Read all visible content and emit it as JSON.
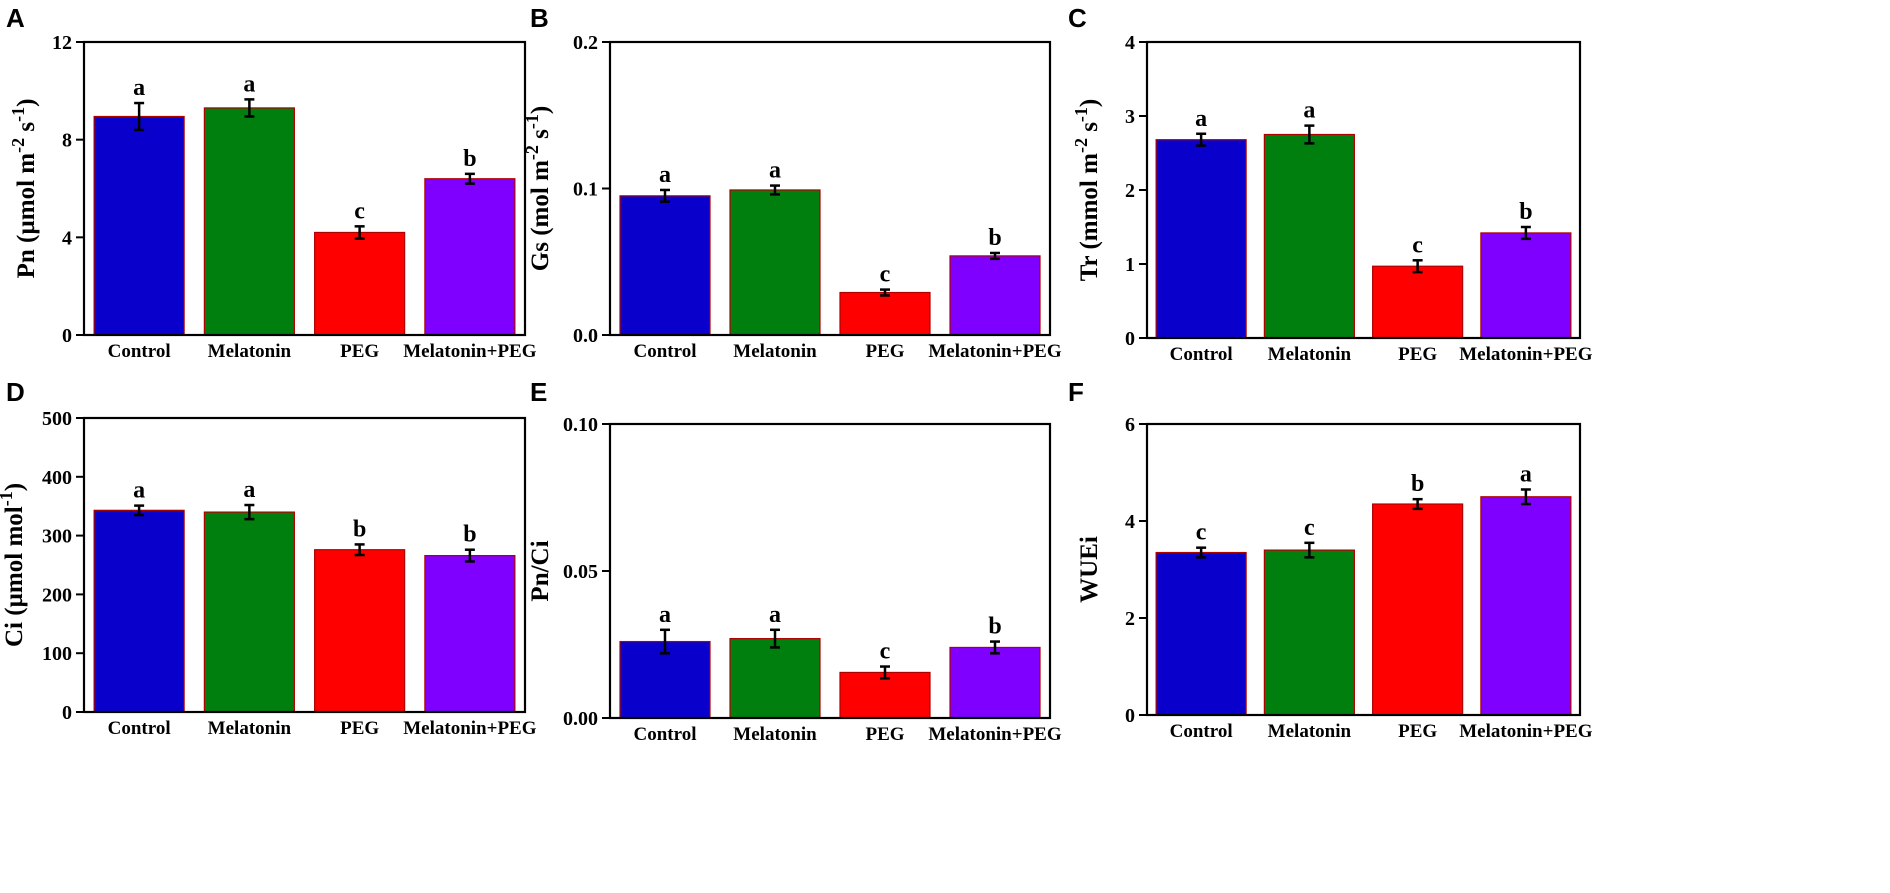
{
  "chart_data": [
    {
      "panel": "A",
      "type": "bar",
      "categories": [
        "Control",
        "Melatonin",
        "PEG",
        "Melatonin+PEG"
      ],
      "values": [
        8.95,
        9.3,
        4.2,
        6.4
      ],
      "errors": [
        0.55,
        0.35,
        0.25,
        0.2
      ],
      "letters": [
        "a",
        "a",
        "c",
        "b"
      ],
      "ylabel": "Pn (µmol m⁻² s⁻¹)",
      "ylim": [
        0,
        12
      ],
      "yticks": [
        0,
        4,
        8,
        12
      ],
      "yticklabels": [
        "0",
        "4",
        "8",
        "12"
      ]
    },
    {
      "panel": "B",
      "type": "bar",
      "categories": [
        "Control",
        "Melatonin",
        "PEG",
        "Melatonin+PEG"
      ],
      "values": [
        0.095,
        0.099,
        0.029,
        0.054
      ],
      "errors": [
        0.004,
        0.003,
        0.002,
        0.002
      ],
      "letters": [
        "a",
        "a",
        "c",
        "b"
      ],
      "ylabel": "Gs (mol m⁻² s⁻¹)",
      "ylim": [
        0,
        0.2
      ],
      "yticks": [
        0,
        0.1,
        0.2
      ],
      "yticklabels": [
        "0.0",
        "0.1",
        "0.2"
      ]
    },
    {
      "panel": "C",
      "type": "bar",
      "categories": [
        "Control",
        "Melatonin",
        "PEG",
        "Melatonin+PEG"
      ],
      "values": [
        2.68,
        2.75,
        0.97,
        1.42
      ],
      "errors": [
        0.08,
        0.12,
        0.08,
        0.08
      ],
      "letters": [
        "a",
        "a",
        "c",
        "b"
      ],
      "ylabel": "Tr (mmol m⁻² s⁻¹)",
      "ylim": [
        0,
        4
      ],
      "yticks": [
        0,
        1,
        2,
        3,
        4
      ],
      "yticklabels": [
        "0",
        "1",
        "2",
        "3",
        "4"
      ]
    },
    {
      "panel": "D",
      "type": "bar",
      "categories": [
        "Control",
        "Melatonin",
        "PEG",
        "Melatonin+PEG"
      ],
      "values": [
        343,
        340,
        276,
        266
      ],
      "errors": [
        8,
        12,
        9,
        10
      ],
      "letters": [
        "a",
        "a",
        "b",
        "b"
      ],
      "ylabel": "Ci (µmol mol⁻¹)",
      "ylim": [
        0,
        500
      ],
      "yticks": [
        0,
        100,
        200,
        300,
        400,
        500
      ],
      "yticklabels": [
        "0",
        "100",
        "200",
        "300",
        "400",
        "500"
      ]
    },
    {
      "panel": "E",
      "type": "bar",
      "categories": [
        "Control",
        "Melatonin",
        "PEG",
        "Melatonin+PEG"
      ],
      "values": [
        0.026,
        0.027,
        0.0155,
        0.024
      ],
      "errors": [
        0.004,
        0.003,
        0.002,
        0.002
      ],
      "letters": [
        "a",
        "a",
        "c",
        "b"
      ],
      "ylabel": "Pn/Ci",
      "ylim": [
        0,
        0.1
      ],
      "yticks": [
        0,
        0.05,
        0.1
      ],
      "yticklabels": [
        "0.00",
        "0.05",
        "0.10"
      ]
    },
    {
      "panel": "F",
      "type": "bar",
      "categories": [
        "Control",
        "Melatonin",
        "PEG",
        "Melatonin+PEG"
      ],
      "values": [
        3.35,
        3.4,
        4.35,
        4.5
      ],
      "errors": [
        0.1,
        0.15,
        0.1,
        0.15
      ],
      "letters": [
        "c",
        "c",
        "b",
        "a"
      ],
      "ylabel": "WUEi",
      "ylim": [
        0,
        6
      ],
      "yticks": [
        0,
        2,
        4,
        6
      ],
      "yticklabels": [
        "0",
        "2",
        "4",
        "6"
      ]
    }
  ],
  "colors": {
    "bars": [
      "#0a00cc",
      "#007f0e",
      "#ff0000",
      "#7f00ff"
    ],
    "bar_edge": "#b00000",
    "axis": "#000000"
  }
}
